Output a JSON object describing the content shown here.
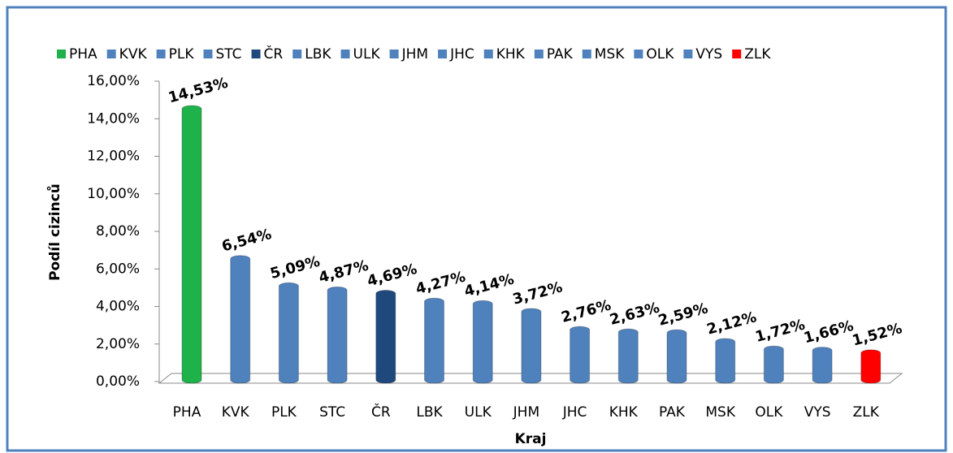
{
  "chart_data": {
    "type": "bar",
    "y_label": "Podíl cizinců",
    "x_label": "Kraj",
    "categories": [
      "PHA",
      "KVK",
      "PLK",
      "STC",
      "ČR",
      "LBK",
      "ULK",
      "JHM",
      "JHC",
      "KHK",
      "PAK",
      "MSK",
      "OLK",
      "VYS",
      "ZLK"
    ],
    "values": [
      14.53,
      6.54,
      5.09,
      4.87,
      4.69,
      4.27,
      4.14,
      3.72,
      2.76,
      2.63,
      2.59,
      2.12,
      1.72,
      1.66,
      1.52
    ],
    "value_labels": [
      "14,53%",
      "6,54%",
      "5,09%",
      "4,87%",
      "4,69%",
      "4,27%",
      "4,14%",
      "3,72%",
      "2,76%",
      "2,63%",
      "2,59%",
      "2,12%",
      "1,72%",
      "1,66%",
      "1,52%"
    ],
    "colors": [
      "#1fb14a",
      "#4f81bd",
      "#4f81bd",
      "#4f81bd",
      "#1f497d",
      "#4f81bd",
      "#4f81bd",
      "#4f81bd",
      "#4f81bd",
      "#4f81bd",
      "#4f81bd",
      "#4f81bd",
      "#4f81bd",
      "#4f81bd",
      "#ff0000"
    ],
    "ylim": [
      0,
      16
    ],
    "yticks": [
      {
        "value": 0,
        "label": "0,00%"
      },
      {
        "value": 2,
        "label": "2,00%"
      },
      {
        "value": 4,
        "label": "4,00%"
      },
      {
        "value": 6,
        "label": "6,00%"
      },
      {
        "value": 8,
        "label": "8,00%"
      },
      {
        "value": 10,
        "label": "10,00%"
      },
      {
        "value": 12,
        "label": "12,00%"
      },
      {
        "value": 14,
        "label": "14,00%"
      },
      {
        "value": 16,
        "label": "16,00%"
      }
    ],
    "legend": "top"
  }
}
